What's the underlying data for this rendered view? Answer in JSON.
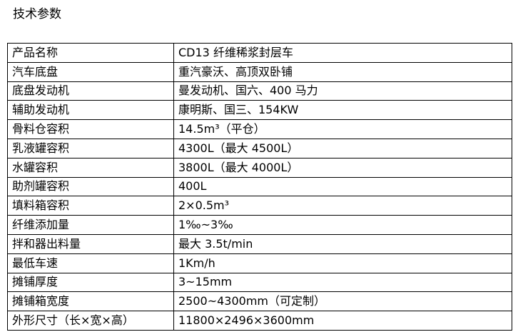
{
  "title": "技术参数",
  "table": {
    "rows": [
      [
        "产品名称",
        "CD13 纤维稀浆封层车"
      ],
      [
        "汽车底盘",
        "重汽豪沃、高顶双卧铺"
      ],
      [
        "底盘发动机",
        "曼发动机、国六、400 马力"
      ],
      [
        "辅助发动机",
        "康明斯、国三、154KW"
      ],
      [
        "骨料仓容积",
        "14.5m³（平仓）"
      ],
      [
        "乳液罐容积",
        "4300L（最大 4500L）"
      ],
      [
        "水罐容积",
        "3800L（最大 4000L）"
      ],
      [
        "助剂罐容积",
        "400L"
      ],
      [
        "填料箱容积",
        "2×0.5m³"
      ],
      [
        "纤维添加量",
        "1‰~3‰"
      ],
      [
        "拌和器出料量",
        "最大 3.5t/min"
      ],
      [
        "最低车速",
        "1Km/h"
      ],
      [
        "摊铺厚度",
        "3~15mm"
      ],
      [
        "摊铺箱宽度",
        "2500~4300mm（可定制）"
      ],
      [
        "外形尺寸（长×宽×高）",
        "11800×2496×3600mm"
      ]
    ]
  }
}
